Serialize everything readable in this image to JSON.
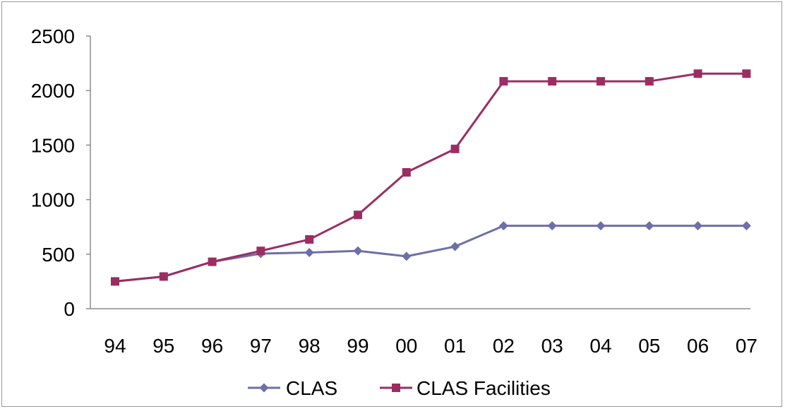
{
  "chart_data": {
    "type": "line",
    "title": "",
    "xlabel": "",
    "ylabel": "",
    "categories": [
      "94",
      "95",
      "96",
      "97",
      "98",
      "99",
      "00",
      "01",
      "02",
      "03",
      "04",
      "05",
      "06",
      "07"
    ],
    "ylim": [
      0,
      2500
    ],
    "yticks": [
      0,
      500,
      1000,
      1500,
      2000,
      2500
    ],
    "grid": false,
    "legend_position": "bottom",
    "series": [
      {
        "name": "CLAS",
        "color": "#6d6fa8",
        "marker": "diamond",
        "values": [
          250,
          295,
          430,
          505,
          515,
          530,
          480,
          570,
          760,
          760,
          760,
          760,
          760,
          760
        ]
      },
      {
        "name": "CLAS Facilities",
        "color": "#9b2d62",
        "marker": "square",
        "values": [
          250,
          295,
          430,
          530,
          635,
          860,
          1250,
          1465,
          2085,
          2085,
          2085,
          2085,
          2155,
          2155
        ]
      }
    ]
  }
}
